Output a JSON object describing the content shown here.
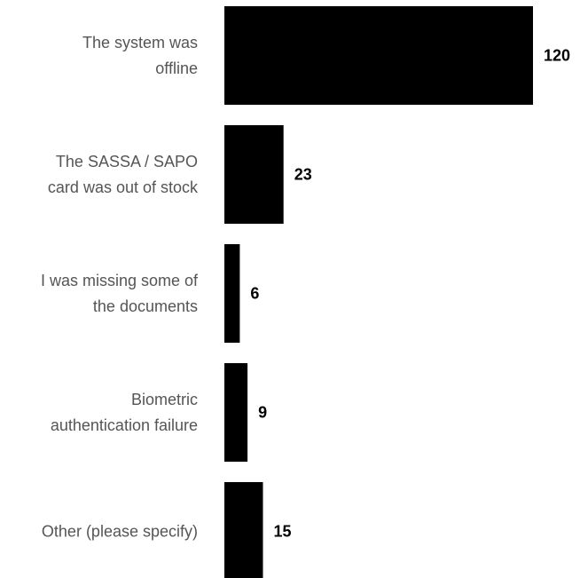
{
  "chart_data": {
    "type": "bar",
    "orientation": "horizontal",
    "categories": [
      [
        "The system was",
        "offline"
      ],
      [
        "The SASSA / SAPO",
        "card was out of stock"
      ],
      [
        "I was missing some of",
        "the documents"
      ],
      [
        "Biometric",
        "authentication failure"
      ],
      [
        "Other (please specify)"
      ]
    ],
    "values": [
      120,
      23,
      6,
      9,
      15
    ],
    "value_labels": [
      "120",
      "23",
      "6",
      "9",
      "15"
    ],
    "xlim": [
      0,
      120
    ],
    "bar_color": "#000000",
    "label_color": "#555555",
    "grid": false,
    "legend": "none"
  }
}
